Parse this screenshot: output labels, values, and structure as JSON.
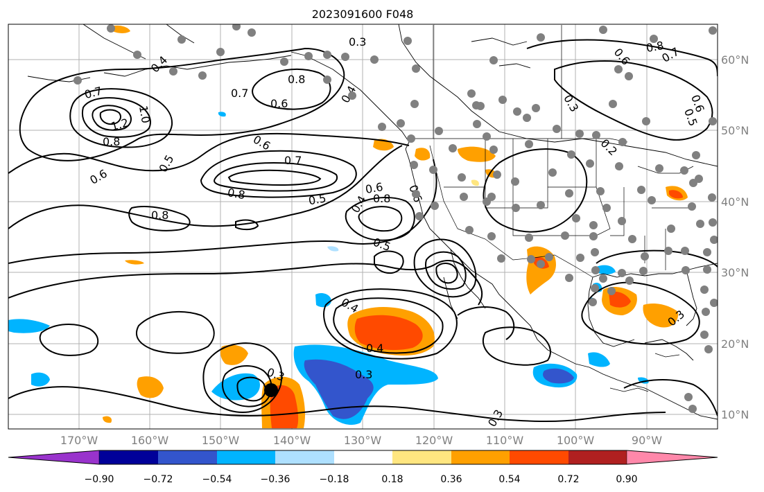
{
  "title": "2023091600 F048",
  "lon_labels": [
    "170°W",
    "160°W",
    "150°W",
    "140°W",
    "130°W",
    "120°W",
    "110°W",
    "100°W",
    "90°W"
  ],
  "lat_labels": [
    "60°N",
    "50°N",
    "40°N",
    "30°N",
    "20°N",
    "10°N"
  ],
  "contour_labels": [
    "0.3",
    "0.4",
    "0.8",
    "0.7",
    "0.6",
    "1.0",
    "1.2",
    "0.8",
    "0.7",
    "0.6",
    "0.8",
    "0.4",
    "0.5",
    "0.6",
    "0.7",
    "0.8",
    "0.5",
    "0.6",
    "0.8",
    "0.4",
    "0.5",
    "0.6",
    "0.4",
    "0.4",
    "0.3",
    "0.3",
    "0.3",
    "0.8",
    "0.7",
    "0.6",
    "0.6",
    "0.5",
    "0.2",
    "0.3",
    "0.3"
  ],
  "colorbar": {
    "tick_labels": [
      "−0.90",
      "−0.72",
      "−0.54",
      "−0.36",
      "−0.18",
      "0.18",
      "0.36",
      "0.54",
      "0.72",
      "0.90"
    ],
    "colors": [
      "#9933cc",
      "#000099",
      "#3355cc",
      "#00b4ff",
      "#aee0ff",
      "#ffffff",
      "#ffe680",
      "#ffa000",
      "#ff4a00",
      "#b02020",
      "#ff88aa"
    ]
  },
  "colors": {
    "neg_light": "#aee0ff",
    "neg_mid": "#00b4ff",
    "neg_strong": "#3355cc",
    "neg_max": "#000099",
    "pos_light": "#ffe680",
    "pos_mid": "#ffa000",
    "pos_strong": "#ff4a00",
    "station": "#808080",
    "storm_center": "#000000"
  }
}
